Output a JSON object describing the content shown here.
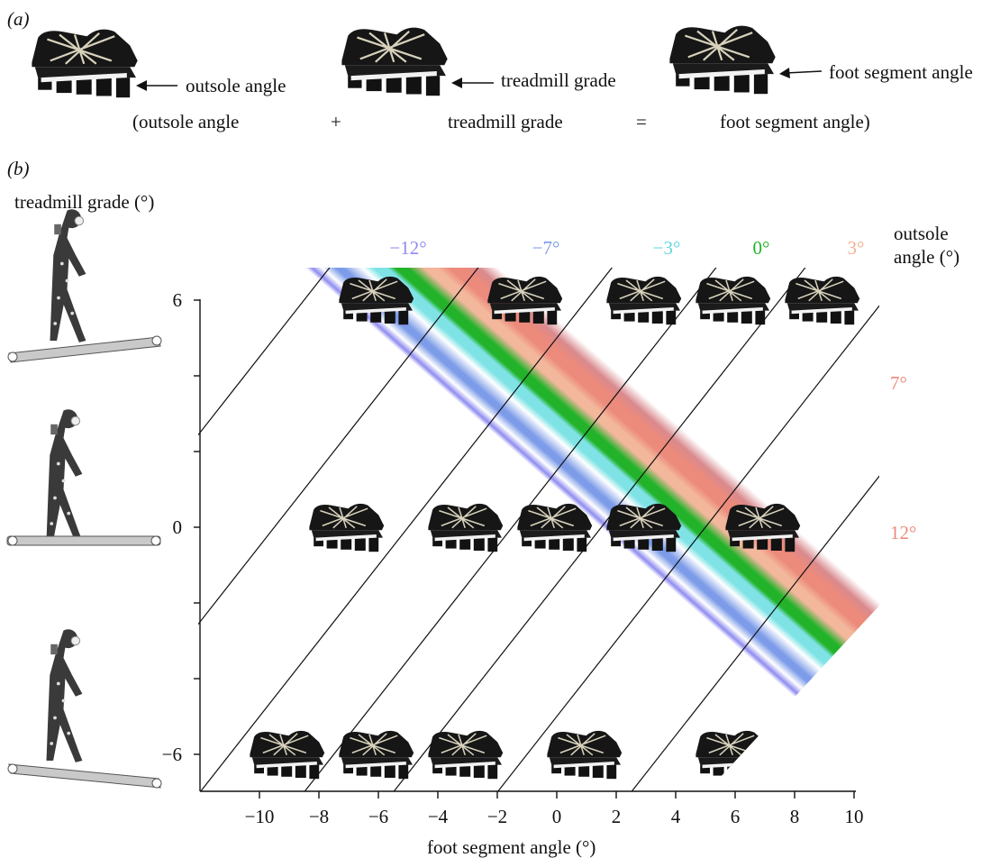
{
  "panel_a": {
    "label": "(a)",
    "outsole_arrow_label": "outsole angle",
    "treadmill_arrow_label": "treadmill grade",
    "foot_arrow_label": "foot segment angle",
    "equation": {
      "open": "(outsole angle",
      "plus": "+",
      "middle": "treadmill grade",
      "equals": "=",
      "close": "foot segment angle)"
    }
  },
  "panel_b": {
    "label": "(b)",
    "y_title": "treadmill grade (°)",
    "x_title": "foot segment angle (°)",
    "legend_title_line1": "outsole",
    "legend_title_line2": "angle (°)"
  },
  "chart_data": {
    "type": "diagram",
    "xlabel": "foot segment angle (°)",
    "ylabel": "treadmill grade (°)",
    "x_ticks": [
      -10,
      -8,
      -6,
      -4,
      -2,
      0,
      2,
      4,
      6,
      8,
      10
    ],
    "y_ticks": [
      6,
      0,
      -6
    ],
    "x_range": [
      -12,
      10
    ],
    "y_range": [
      -7,
      7
    ],
    "relation": "outsole angle + treadmill grade = foot segment angle",
    "bands": [
      {
        "label": "−12°",
        "outsole": -12,
        "color": "#8f8cf0",
        "label_color": "#8f8cf0"
      },
      {
        "label": "−7°",
        "outsole": -7,
        "color": "#7c9be8",
        "label_color": "#7c9be8"
      },
      {
        "label": "−3°",
        "outsole": -3,
        "color": "#7fe3e6",
        "label_color": "#5fd6dc"
      },
      {
        "label": "0°",
        "outsole": 0,
        "color": "#22b32a",
        "label_color": "#22b32a"
      },
      {
        "label": "3°",
        "outsole": 3,
        "color": "#f3b79c",
        "label_color": "#f0b08f"
      },
      {
        "label": "7°",
        "outsole": 7,
        "color": "#ec8a7c",
        "label_color": "#ec8a7c"
      },
      {
        "label": "12°",
        "outsole": 12,
        "color": "#d98a8e",
        "label_color": "#ec8a7c"
      }
    ],
    "shoes": [
      {
        "outsole": -12,
        "grade": 6
      },
      {
        "outsole": -7,
        "grade": 6
      },
      {
        "outsole": -3,
        "grade": 6
      },
      {
        "outsole": 0,
        "grade": 6
      },
      {
        "outsole": 3,
        "grade": 6
      },
      {
        "outsole": -7,
        "grade": 0
      },
      {
        "outsole": -3,
        "grade": 0
      },
      {
        "outsole": 0,
        "grade": 0
      },
      {
        "outsole": 3,
        "grade": 0
      },
      {
        "outsole": 7,
        "grade": 0
      },
      {
        "outsole": -3,
        "grade": -6
      },
      {
        "outsole": 0,
        "grade": -6
      },
      {
        "outsole": 3,
        "grade": -6
      },
      {
        "outsole": 7,
        "grade": -6
      },
      {
        "outsole": 12,
        "grade": -6
      }
    ]
  }
}
